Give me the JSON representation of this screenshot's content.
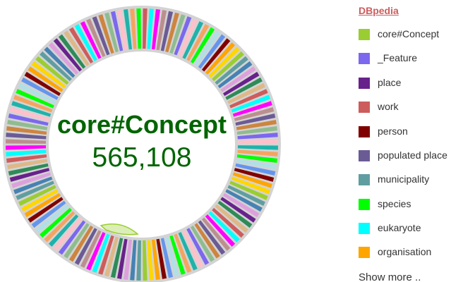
{
  "legend": {
    "title": "DBpedia",
    "items": [
      {
        "label": "core#Concept",
        "color": "#9acd32"
      },
      {
        "label": "_Feature",
        "color": "#7b68ee"
      },
      {
        "label": "place",
        "color": "#68228b"
      },
      {
        "label": "work",
        "color": "#cd5c5c"
      },
      {
        "label": "person",
        "color": "#800000"
      },
      {
        "label": "populated place",
        "color": "#6b5b95"
      },
      {
        "label": "municipality",
        "color": "#5f9ea0"
      },
      {
        "label": "species",
        "color": "#00ff00"
      },
      {
        "label": "eukaryote",
        "color": "#00ffff"
      },
      {
        "label": "organisation",
        "color": "#ffa500"
      }
    ],
    "show_more": "Show more .."
  },
  "center": {
    "title": "core#Concept",
    "value": "565,108"
  },
  "chart_data": {
    "type": "pie",
    "style": "donut",
    "highlighted": "core#Concept",
    "highlighted_value": 565108,
    "categories": [
      "core#Concept",
      "_Feature",
      "place",
      "work",
      "person",
      "populated place",
      "municipality",
      "species",
      "eukaryote",
      "organisation"
    ],
    "colors": [
      "#9acd32",
      "#7b68ee",
      "#68228b",
      "#cd5c5c",
      "#800000",
      "#6b5b95",
      "#5f9ea0",
      "#00ff00",
      "#00ffff",
      "#ffa500"
    ],
    "ring_palette": [
      "#cd5c5c",
      "#9acd32",
      "#7b68ee",
      "#68228b",
      "#800000",
      "#6b5b95",
      "#5f9ea0",
      "#00ff00",
      "#00ffff",
      "#ffa500",
      "#ffc0cb",
      "#2e8b57",
      "#b0e0e6",
      "#cd853f",
      "#4682b4",
      "#20b2aa",
      "#ff00ff",
      "#ffd700",
      "#8fbc8f",
      "#deb887",
      "#6495ed",
      "#bc8f8f",
      "#dda0dd",
      "#f4a460"
    ],
    "segment_count": 132
  }
}
